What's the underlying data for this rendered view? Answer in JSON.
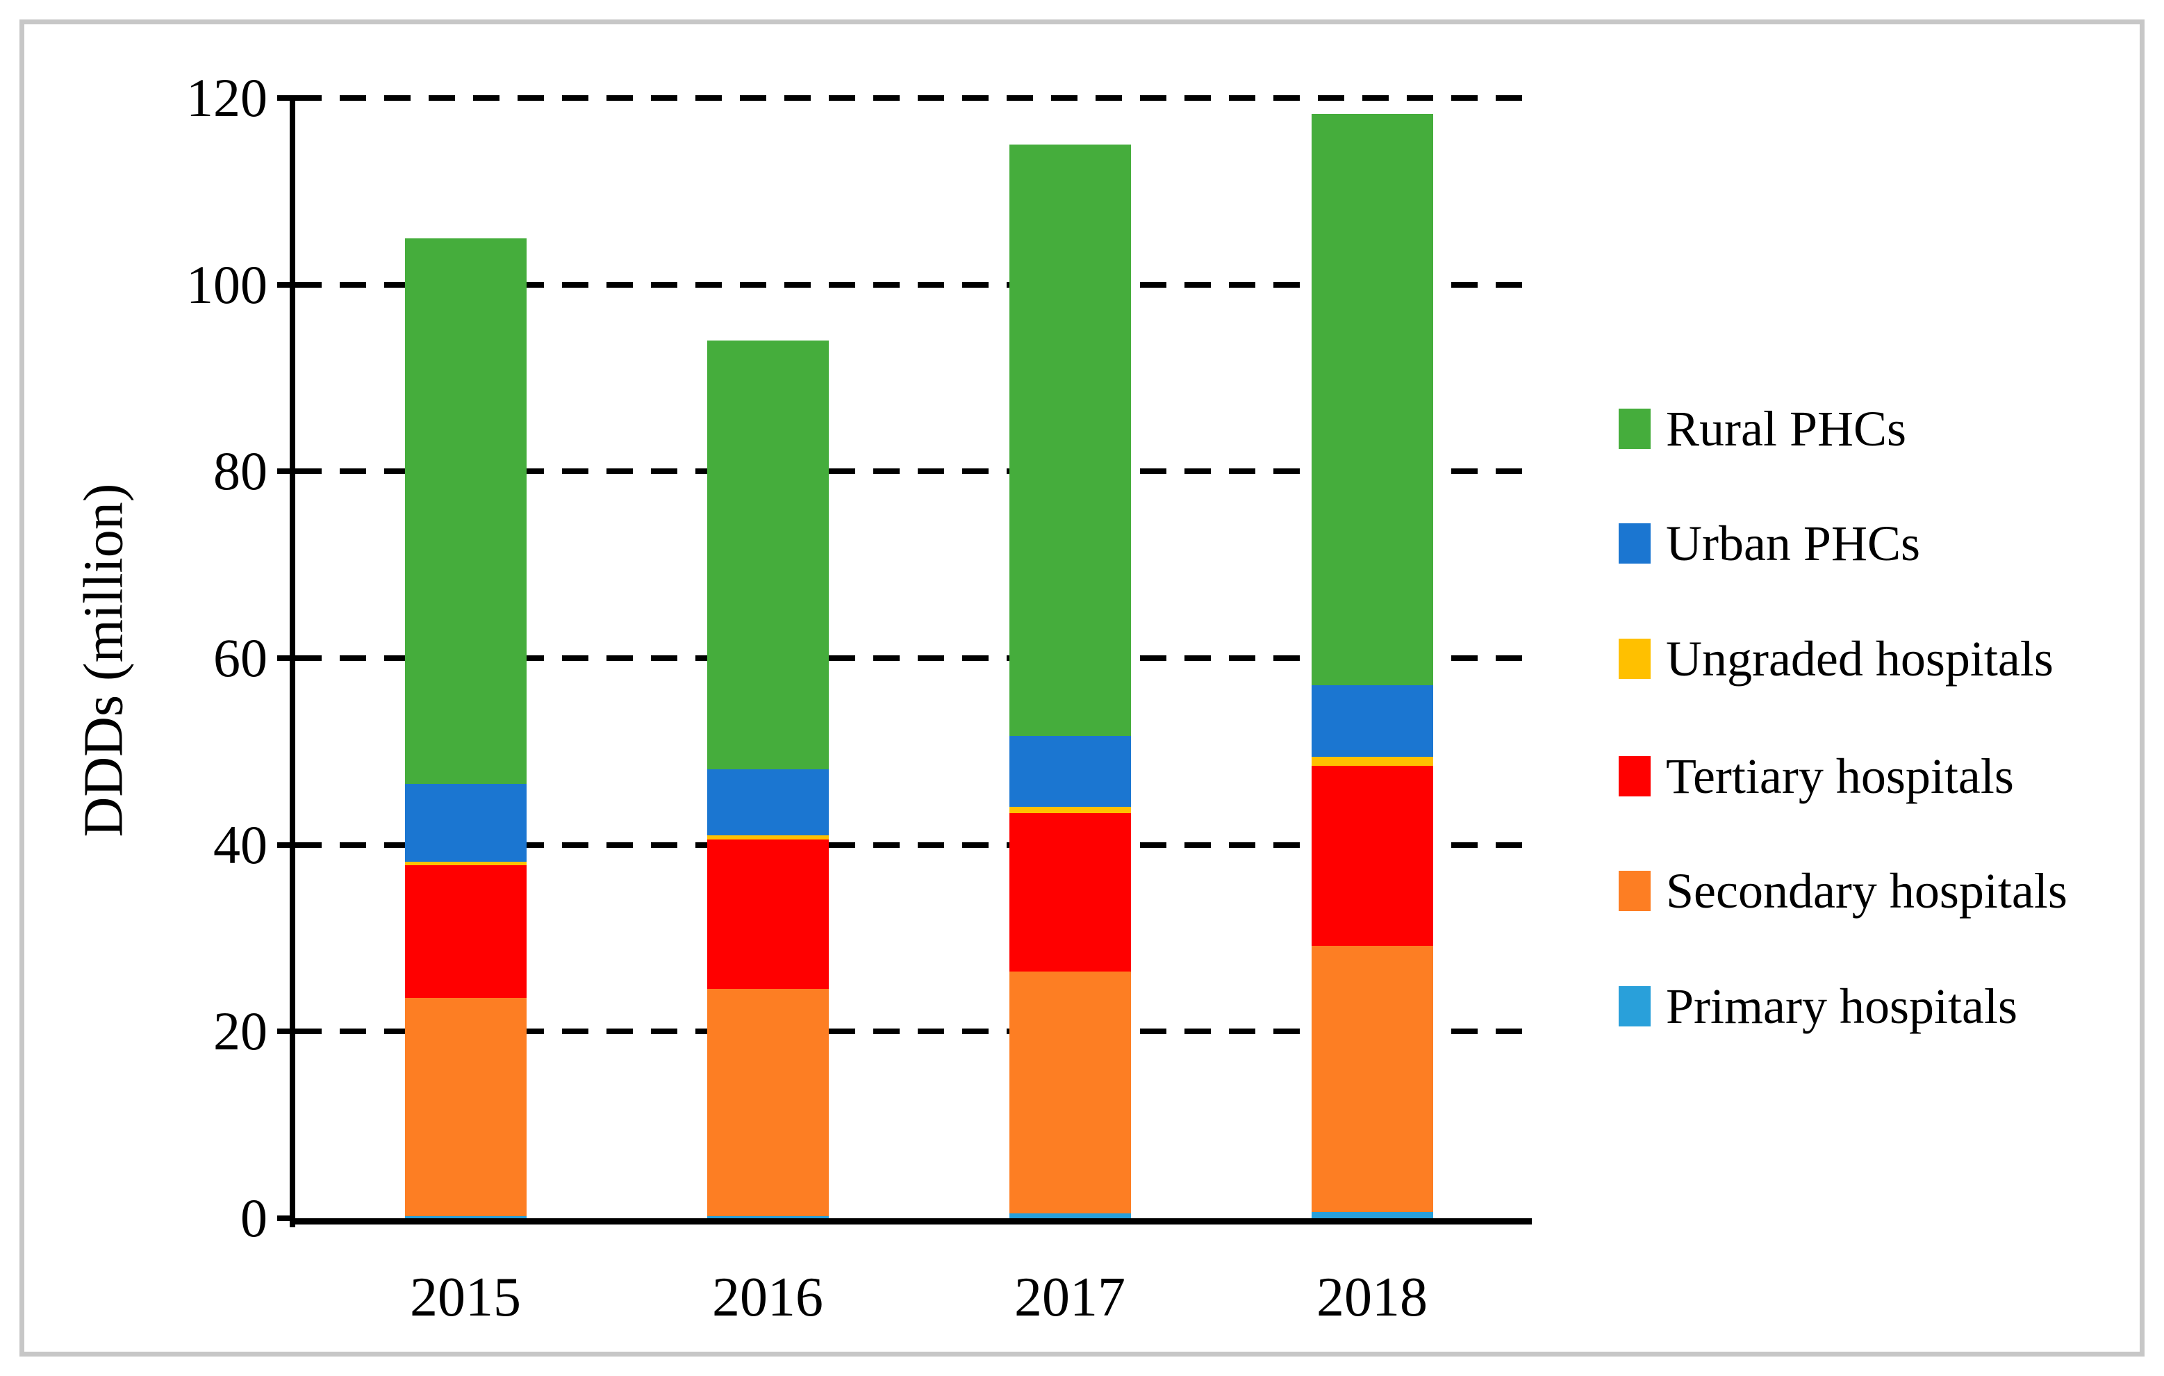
{
  "figure": {
    "background": "#ffffff",
    "border_color": "#c7c7c7"
  },
  "chart_data": {
    "type": "bar",
    "stacked": true,
    "title": "",
    "xlabel": "",
    "ylabel": "DDDs (million)",
    "categories": [
      "2015",
      "2016",
      "2017",
      "2018"
    ],
    "ylim": [
      0,
      120
    ],
    "ytick_interval": 20,
    "yticks": [
      0,
      20,
      40,
      60,
      80,
      100,
      120
    ],
    "grid": "horizontal-dashed",
    "legend_position": "right",
    "series": [
      {
        "name": "Primary hospitals",
        "color": "#29A0DA",
        "values": [
          0.2,
          0.2,
          0.5,
          0.7
        ]
      },
      {
        "name": "Secondary hospitals",
        "color": "#FD7E23",
        "values": [
          23.4,
          24.4,
          25.9,
          28.5
        ]
      },
      {
        "name": "Tertiary hospitals",
        "color": "#FF0000",
        "values": [
          14.2,
          16.0,
          17.0,
          19.3
        ]
      },
      {
        "name": "Ungraded hospitals",
        "color": "#FFC000",
        "values": [
          0.4,
          0.4,
          0.7,
          0.9
        ]
      },
      {
        "name": "Urban PHCs",
        "color": "#1B76D1",
        "values": [
          8.3,
          7.1,
          7.6,
          7.7
        ]
      },
      {
        "name": "Rural PHCs",
        "color": "#45AD3C",
        "values": [
          58.5,
          45.9,
          63.3,
          61.2
        ]
      }
    ],
    "totals": [
      105.0,
      94.0,
      115.0,
      118.3
    ],
    "legend_order": [
      "Rural PHCs",
      "Urban PHCs",
      "Ungraded hospitals",
      "Tertiary hospitals",
      "Secondary hospitals",
      "Primary hospitals"
    ]
  }
}
